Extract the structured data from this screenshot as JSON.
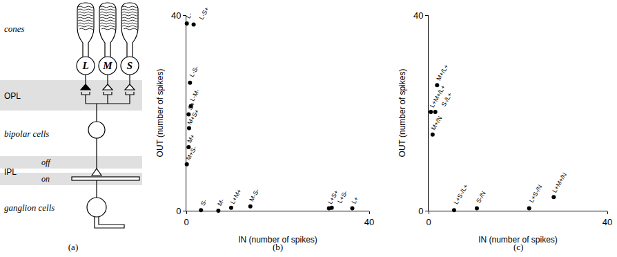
{
  "diagram": {
    "caption": "(a)",
    "cones_label": "cones",
    "cone_types": [
      "L",
      "M",
      "S"
    ],
    "opl_label": "OPL",
    "bipolar_label": "bipolar cells",
    "ipl_label": "IPL",
    "off_label": "off",
    "on_label": "on",
    "ganglion_label": "ganglion cells"
  },
  "chart_data": [
    {
      "type": "scatter",
      "caption": "(b)",
      "x_label": "IN (number of spikes)",
      "y_label": "OUT (number of spikes)",
      "xlim": [
        0,
        40
      ],
      "ylim": [
        0,
        40
      ],
      "xticks": [
        0,
        40
      ],
      "yticks": [
        0,
        40
      ],
      "grid": false,
      "color": "#000000",
      "marker": "circle",
      "labels": [
        "L-",
        "L-S+",
        "L-S-",
        "L-M-",
        "S+",
        "M+S+",
        "M+",
        "M+S-",
        "S-",
        "M-",
        "L+M+",
        "M-S-",
        "L+S+",
        "L+S-",
        "L+"
      ],
      "x": [
        0.1,
        1.6,
        0.8,
        1.0,
        0.5,
        0.6,
        0.5,
        0.1,
        3.2,
        7.0,
        9.8,
        14.0,
        31.2,
        31.8,
        36.3
      ],
      "y": [
        38.3,
        38.1,
        26.2,
        21.4,
        19.7,
        16.9,
        13.0,
        9.5,
        0.1,
        0,
        0.6,
        0.9,
        0.5,
        0.6,
        0.5
      ]
    },
    {
      "type": "scatter",
      "caption": "(c)",
      "x_label": "IN (number of spikes)",
      "y_label": "OUT (number of spikes)",
      "xlim": [
        0,
        40
      ],
      "ylim": [
        0,
        40
      ],
      "xticks": [
        0,
        40
      ],
      "yticks": [
        0,
        40
      ],
      "grid": false,
      "color": "#000000",
      "marker": "circle",
      "labels": [
        "M+/L+",
        "L+M+/L+",
        "S-/L+",
        "M+/N",
        "L+S-/L+",
        "S-/N",
        "L+S-/N",
        "L+M+/N"
      ],
      "x": [
        1.9,
        0.5,
        1.5,
        0.9,
        5.7,
        10.8,
        22.5,
        28.0
      ],
      "y": [
        25.7,
        20.2,
        20.2,
        15.6,
        0.1,
        0.5,
        0.5,
        2.8
      ]
    }
  ]
}
